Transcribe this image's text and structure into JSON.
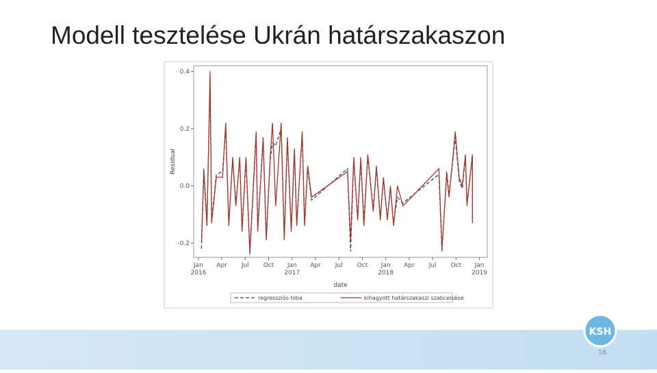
{
  "slide": {
    "title": "Modell tesztelése Ukrán határszakaszon",
    "page_number": "16",
    "logo": "KSH"
  },
  "chart_data": {
    "type": "line",
    "ylabel": "Residual",
    "xlabel": "date",
    "x": [
      0.4,
      0.7,
      1.1,
      1.5,
      1.7,
      2.3,
      3.1,
      3.5,
      3.9,
      4.4,
      4.8,
      5.3,
      5.6,
      6.1,
      6.6,
      7.4,
      7.6,
      8.3,
      8.7,
      9.2,
      9.5,
      9.9,
      10.6,
      11.0,
      11.4,
      11.9,
      12.3,
      12.6,
      13.3,
      13.6,
      14.0,
      14.5,
      19.1,
      19.5,
      19.9,
      20.4,
      20.8,
      21.2,
      21.7,
      22.4,
      22.8,
      23.3,
      23.7,
      24.2,
      24.6,
      25.0,
      25.5,
      26.2,
      30.8,
      31.2,
      31.8,
      32.1,
      32.6,
      32.9,
      33.4,
      33.8,
      34.2,
      34.4,
      35.1,
      35.1
    ],
    "series": [
      {
        "name": "regressziós hiba",
        "color": "#2b4a7a",
        "dashed": true,
        "values": [
          -0.22,
          0.06,
          -0.12,
          0.36,
          -0.12,
          0.04,
          0.05,
          0.2,
          -0.13,
          0.09,
          -0.06,
          0.09,
          -0.15,
          0.09,
          -0.24,
          0.18,
          -0.15,
          0.16,
          -0.18,
          0.09,
          0.15,
          0.14,
          0.2,
          -0.18,
          0.16,
          -0.15,
          0.12,
          -0.13,
          0.18,
          -0.13,
          0.06,
          -0.05,
          0.06,
          -0.23,
          0.09,
          -0.11,
          0.08,
          -0.12,
          0.1,
          -0.08,
          0.06,
          -0.11,
          0.02,
          -0.11,
          -0.01,
          -0.13,
          -0.04,
          -0.06,
          0.04,
          -0.23,
          0.05,
          -0.03,
          0.09,
          0.17,
          0.02,
          -0.01,
          0.1,
          -0.06,
          0.1,
          -0.12
        ]
      },
      {
        "name": "kihagyott határszakaszi szabcelsése",
        "color": "#a3352b",
        "dashed": false,
        "values": [
          -0.2,
          0.05,
          -0.14,
          0.4,
          -0.13,
          0.03,
          0.03,
          0.22,
          -0.14,
          0.1,
          -0.07,
          0.1,
          -0.16,
          0.1,
          -0.23,
          0.19,
          -0.16,
          0.17,
          -0.19,
          0.1,
          0.22,
          -0.07,
          0.22,
          -0.19,
          0.17,
          -0.16,
          0.13,
          -0.14,
          0.19,
          -0.14,
          0.07,
          -0.04,
          0.05,
          -0.19,
          0.1,
          -0.12,
          0.1,
          -0.14,
          0.11,
          -0.09,
          0.07,
          -0.12,
          0.03,
          -0.12,
          0.0,
          -0.14,
          0.0,
          -0.07,
          0.06,
          -0.22,
          0.04,
          -0.04,
          0.1,
          0.19,
          0.03,
          0.0,
          0.11,
          -0.07,
          0.11,
          -0.13
        ]
      }
    ],
    "xlim": [
      -0.6,
      37
    ],
    "xticks": [
      {
        "value": 0,
        "label": "Jan 2016"
      },
      {
        "value": 3,
        "label": "Apr"
      },
      {
        "value": 6,
        "label": "Jul"
      },
      {
        "value": 9,
        "label": "Oct"
      },
      {
        "value": 12,
        "label": "Jan 2017"
      },
      {
        "value": 15,
        "label": "Apr"
      },
      {
        "value": 18,
        "label": "Jul"
      },
      {
        "value": 21,
        "label": "Oct"
      },
      {
        "value": 24,
        "label": "Jan 2018"
      },
      {
        "value": 27,
        "label": "Apr"
      },
      {
        "value": 30,
        "label": "Jul"
      },
      {
        "value": 33,
        "label": "Oct"
      },
      {
        "value": 36,
        "label": "Jan 2019"
      }
    ],
    "ylim": [
      -0.25,
      0.42
    ],
    "yticks": [
      -0.2,
      {
        "value": 0,
        "label": "0.0"
      },
      0.2,
      0.4
    ]
  }
}
